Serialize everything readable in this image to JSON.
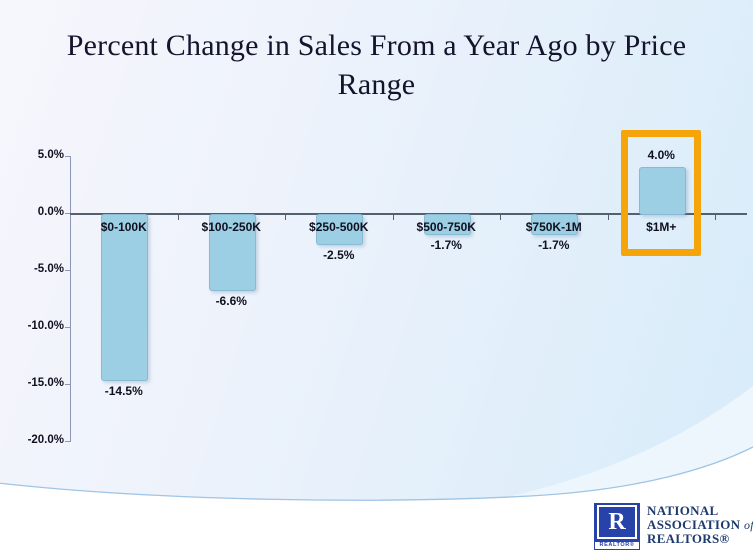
{
  "header": {
    "line1": "Percent Change in Sales From a Year Ago by Price",
    "line2": "Range"
  },
  "colors": {
    "bar_fill": "#9ccfe4",
    "bar_border": "#6ea0be",
    "highlight_orange": "#f5a50a",
    "zero_axis_line": "#53616f",
    "y_axis_line": "#8d96b4",
    "label_text": "#10101f",
    "title_text": "#14142c",
    "logo_blue": "#2742a8",
    "logo_text_navy": "#1e3a6e",
    "background_top_right": "#d8ecfa",
    "background_top_left": "#f7f6fd"
  },
  "chart_data": {
    "type": "bar",
    "title": "Percent Change in Sales From a Year Ago by Price Range",
    "categories": [
      "$0-100K",
      "$100-250K",
      "$250-500K",
      "$500-750K",
      "$750K-1M",
      "$1M+"
    ],
    "values": [
      -14.5,
      -6.6,
      -2.5,
      -1.7,
      -1.7,
      4.0
    ],
    "value_labels": [
      "-14.5%",
      "-6.6%",
      "-2.5%",
      "-1.7%",
      "-1.7%",
      "4.0%"
    ],
    "y_tick_labels": [
      "5.0%",
      "0.0%",
      "-5.0%",
      "-10.0%",
      "-15.0%",
      "-20.0%"
    ],
    "y_tick_values": [
      5,
      0,
      -5,
      -10,
      -15,
      -20
    ],
    "ylim": [
      -20,
      5
    ],
    "xlabel": "",
    "ylabel": "",
    "grid": false,
    "legend": false,
    "highlighted_category": "$1M+"
  },
  "footer": {
    "logo": {
      "letter": "R",
      "realtor_label": "REALTOR®",
      "line1": "NATIONAL",
      "line2": "ASSOCIATION",
      "line2_suffix": "of",
      "line3": "REALTORS®"
    }
  }
}
